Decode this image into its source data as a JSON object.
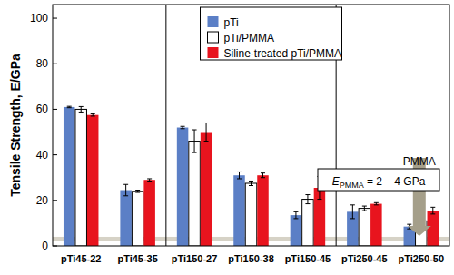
{
  "chart_data": {
    "type": "bar",
    "y_label": "Tensile Strength, E/GPa",
    "categories": [
      "pTi45-22",
      "pTi45-35",
      "pTi150-27",
      "pTi150-38",
      "pTi150-45",
      "pTi250-45",
      "pTi250-50"
    ],
    "series": [
      {
        "name": "pTi",
        "color": "#5b7fc6",
        "values": [
          61,
          24.5,
          52,
          31,
          13.5,
          15,
          8.5
        ],
        "errors": [
          0.3,
          2.5,
          0.5,
          1.5,
          1.5,
          3,
          1
        ]
      },
      {
        "name": "pTi/PMMA",
        "color": "#ffffff",
        "values": [
          60,
          24,
          46,
          27.5,
          20.5,
          16.5,
          11
        ],
        "errors": [
          1.2,
          0.5,
          5,
          1,
          2,
          1,
          0.3
        ]
      },
      {
        "name": "Siline-treated pTi/PMMA",
        "color": "#e8141e",
        "values": [
          57.5,
          29,
          50,
          31,
          25.5,
          18.5,
          15.5
        ],
        "errors": [
          0.5,
          0.5,
          4,
          1,
          5,
          0.5,
          1.5
        ]
      }
    ],
    "ylim": [
      0,
      106
    ],
    "yticks": [
      0,
      20,
      40,
      60,
      80,
      100
    ],
    "grid": false,
    "legend": "upper center",
    "annotation": {
      "title": "PMMA",
      "symbol": "E",
      "subscript": "PMMA",
      "text": " = 2 – 4 GPa",
      "band": [
        2,
        4
      ]
    }
  }
}
